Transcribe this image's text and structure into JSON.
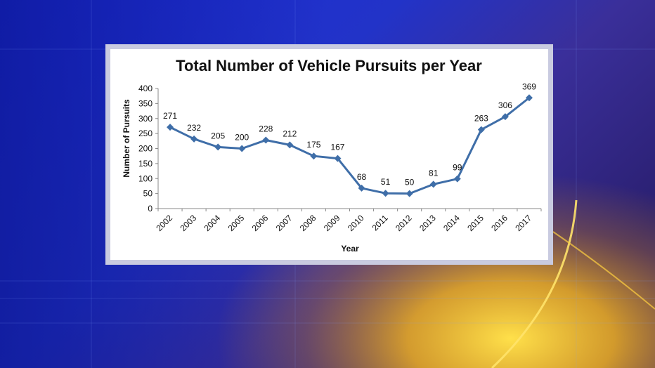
{
  "chart_data": {
    "type": "line",
    "title": "Total Number of Vehicle Pursuits per Year",
    "xlabel": "Year",
    "ylabel": "Number of Pursuits",
    "ylim": [
      0,
      400
    ],
    "yticks": [
      0,
      50,
      100,
      150,
      200,
      250,
      300,
      350,
      400
    ],
    "grid": false,
    "legend": "none",
    "x": [
      "2002",
      "2003",
      "2004",
      "2005",
      "2006",
      "2007",
      "2008",
      "2009",
      "2010",
      "2011",
      "2012",
      "2013",
      "2014",
      "2015",
      "2016",
      "2017"
    ],
    "series": [
      {
        "values": [
          271,
          232,
          205,
          200,
          228,
          212,
          175,
          167,
          68,
          51,
          50,
          81,
          99,
          263,
          306,
          369
        ],
        "color": "#3f6ea8",
        "marker": "diamond",
        "data_labels": true
      }
    ]
  },
  "colors": {
    "background_blue": "#1d2fd0",
    "background_gold": "#f2c21a",
    "frame": "#c9cbe0",
    "panel": "#ffffff"
  }
}
